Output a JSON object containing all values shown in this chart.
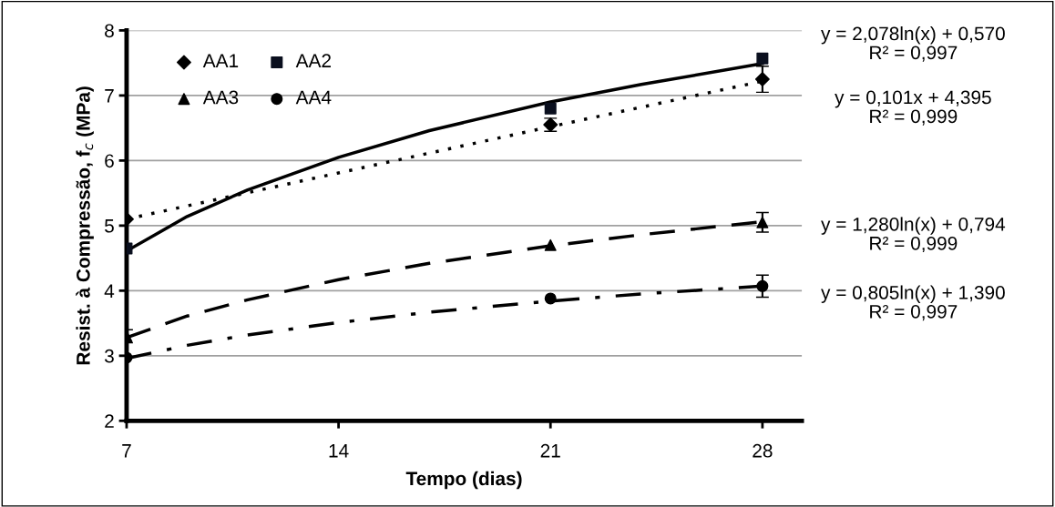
{
  "chart_data": {
    "type": "scatter",
    "xlabel": "Tempo (dias)",
    "ylabel": "Resist. à Compressão, f$_{c}$ (MPa)",
    "xlim": [
      7,
      29.3
    ],
    "xticks": [
      7,
      14,
      21,
      28
    ],
    "ylim": [
      2,
      8
    ],
    "yticks": [
      2,
      3,
      4,
      5,
      6,
      7,
      8
    ],
    "grid": "y",
    "legend": "top left",
    "series": [
      {
        "name": "AA1",
        "marker": "diamond",
        "color": "#000000",
        "x": [
          7,
          21,
          28
        ],
        "values": [
          5.1,
          6.55,
          7.25
        ],
        "errors": [
          null,
          0.1,
          0.2
        ]
      },
      {
        "name": "AA2",
        "marker": "square",
        "color": "#0a0f1e",
        "x": [
          7,
          21,
          28
        ],
        "values": [
          4.65,
          6.8,
          7.57
        ]
      },
      {
        "name": "AA3",
        "marker": "triangle",
        "color": "#000000",
        "x": [
          7,
          21,
          28
        ],
        "values": [
          3.3,
          4.7,
          5.05
        ],
        "errors": [
          0.1,
          null,
          0.15
        ]
      },
      {
        "name": "AA4",
        "marker": "circle",
        "color": "#000000",
        "x": [
          7,
          21,
          28
        ],
        "values": [
          2.97,
          3.88,
          4.07
        ],
        "errors": [
          null,
          null,
          0.17
        ]
      },
      {
        "type": "line",
        "line_style": "dotted",
        "color": "#000000",
        "x": [
          7,
          14,
          21,
          28
        ],
        "values": [
          5.1,
          5.81,
          6.52,
          7.22
        ]
      },
      {
        "type": "line",
        "line_style": "solid",
        "color": "#000000",
        "x": [
          7,
          9,
          11,
          14,
          17,
          21,
          24,
          28
        ],
        "values": [
          4.61,
          5.14,
          5.55,
          6.05,
          6.46,
          6.9,
          7.17,
          7.49
        ]
      },
      {
        "type": "line",
        "line_style": "dashed",
        "color": "#000000",
        "x": [
          7,
          9,
          11,
          14,
          17,
          21,
          24,
          28
        ],
        "values": [
          3.28,
          3.61,
          3.86,
          4.17,
          4.42,
          4.69,
          4.86,
          5.06
        ]
      },
      {
        "type": "line",
        "line_style": "dashdot",
        "color": "#000000",
        "x": [
          7,
          9,
          11,
          14,
          17,
          21,
          24,
          28
        ],
        "values": [
          2.96,
          3.16,
          3.32,
          3.51,
          3.67,
          3.84,
          3.95,
          4.07
        ]
      }
    ],
    "annotations": [
      "y = 2,078ln(x) + 0,570\nR² = 0,997",
      "y = 0,101x + 4,395\nR² = 0,999",
      "y = 1,280ln(x) + 0,794\nR² = 0,999",
      "y = 0,805ln(x) + 1,390\nR² = 0,997"
    ]
  }
}
